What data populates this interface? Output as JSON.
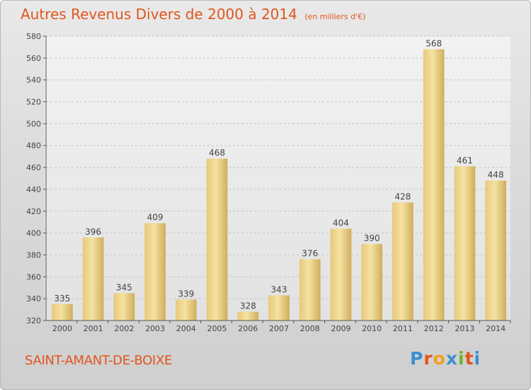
{
  "title": "Autres Revenus Divers de 2000 à 2014",
  "subtitle": "(en milliers d'€)",
  "place": "SAINT-AMANT-DE-BOIXE",
  "logo": {
    "text": "Proxiti",
    "colors": [
      "#3b8fd0",
      "#e0561c",
      "#f0a020",
      "#3b8fd0",
      "#6bb42c",
      "#e0561c",
      "#3b8fd0"
    ]
  },
  "colors": {
    "accent": "#e0561c",
    "bar_light": "#f7e3a0",
    "bar_dark": "#d8b763",
    "axis": "#555555",
    "grid": "#c4c4c4",
    "text": "#444444"
  },
  "chart_data": {
    "type": "bar",
    "categories": [
      "2000",
      "2001",
      "2002",
      "2003",
      "2004",
      "2005",
      "2006",
      "2007",
      "2008",
      "2009",
      "2010",
      "2011",
      "2012",
      "2013",
      "2014"
    ],
    "values": [
      335,
      396,
      345,
      409,
      339,
      468,
      328,
      343,
      376,
      404,
      390,
      428,
      568,
      461,
      448
    ],
    "title": "Autres Revenus Divers de 2000 à 2014",
    "subtitle": "(en milliers d'€)",
    "xlabel": "",
    "ylabel": "",
    "ylim": [
      320,
      580
    ],
    "yticks": [
      320,
      340,
      360,
      380,
      400,
      420,
      440,
      460,
      480,
      500,
      520,
      540,
      560,
      580
    ],
    "grid": true,
    "legend": "none"
  }
}
